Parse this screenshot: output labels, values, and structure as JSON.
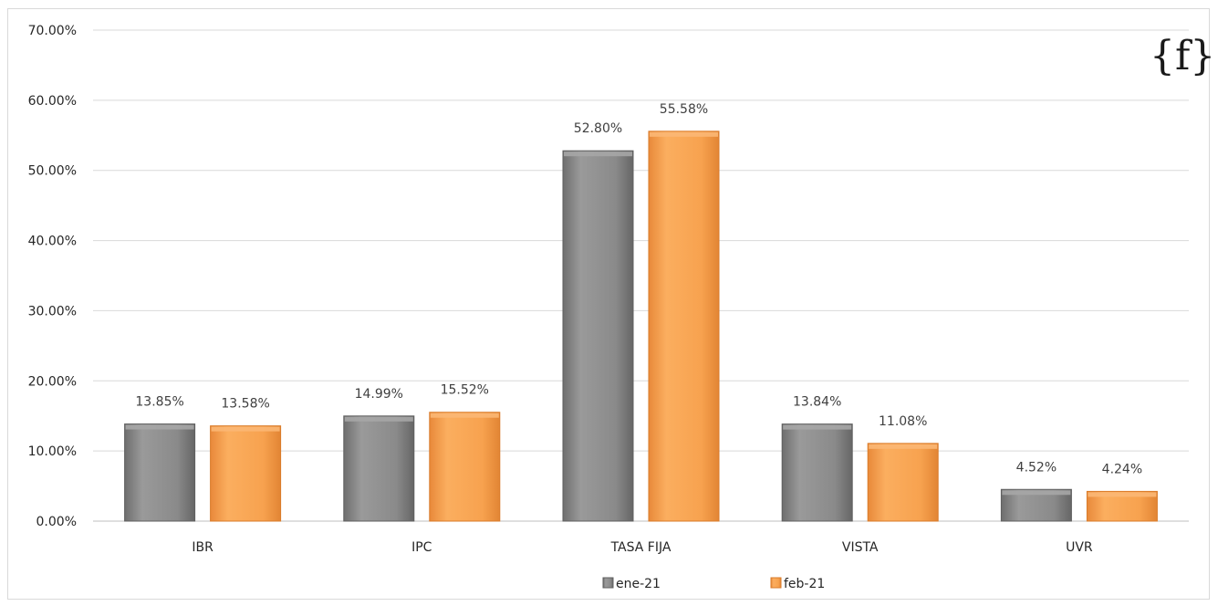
{
  "chart_data": {
    "type": "bar",
    "categories": [
      "IBR",
      "IPC",
      "TASA FIJA",
      "VISTA",
      "UVR"
    ],
    "series": [
      {
        "name": "ene-21",
        "values": [
          13.85,
          14.99,
          52.8,
          13.84,
          4.52
        ],
        "color": "#8c8c8c"
      },
      {
        "name": "feb-21",
        "values": [
          13.58,
          15.52,
          55.58,
          11.08,
          4.24
        ],
        "color": "#f7a24f"
      }
    ],
    "data_labels": [
      [
        "13.85%",
        "14.99%",
        "52.80%",
        "13.84%",
        "4.52%"
      ],
      [
        "13.58%",
        "15.52%",
        "55.58%",
        "11.08%",
        "4.24%"
      ]
    ],
    "y_ticks": [
      0,
      10,
      20,
      30,
      40,
      50,
      60,
      70
    ],
    "y_tick_labels": [
      "0.00%",
      "10.00%",
      "20.00%",
      "30.00%",
      "40.00%",
      "50.00%",
      "60.00%",
      "70.00%"
    ],
    "ylim": [
      0,
      70
    ],
    "grid": true,
    "legend_position": "bottom"
  },
  "logo": {
    "text": "{f}"
  }
}
